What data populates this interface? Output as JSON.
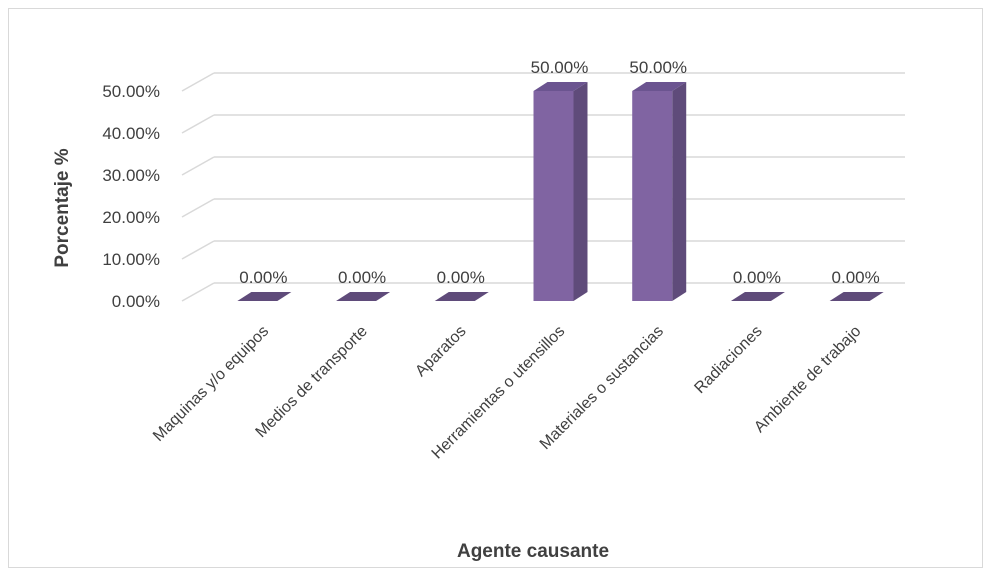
{
  "chart_data": {
    "type": "bar",
    "style": "3d-column",
    "title": "",
    "xlabel": "Agente causante",
    "ylabel": "Porcentaje %",
    "categories": [
      "Maquinas y/o equipos",
      "Medios de transporte",
      "Aparatos",
      "Herramientas o utensillos",
      "Materiales o sustancias",
      "Radiaciones",
      "Ambiente de trabajo"
    ],
    "values": [
      0,
      0,
      0,
      50,
      50,
      0,
      0
    ],
    "data_labels": [
      "0.00%",
      "0.00%",
      "0.00%",
      "50.00%",
      "50.00%",
      "0.00%",
      "0.00%"
    ],
    "yticks": [
      "0.00%",
      "10.00%",
      "20.00%",
      "30.00%",
      "40.00%",
      "50.00%"
    ],
    "ylim": [
      0,
      50
    ],
    "grid": true,
    "legend": "none",
    "colors": {
      "bar_front": "#8064a2",
      "bar_side": "#5f4b7a",
      "bar_top": "#6b5490",
      "grid": "#d9d9d9",
      "text": "#404040"
    }
  }
}
